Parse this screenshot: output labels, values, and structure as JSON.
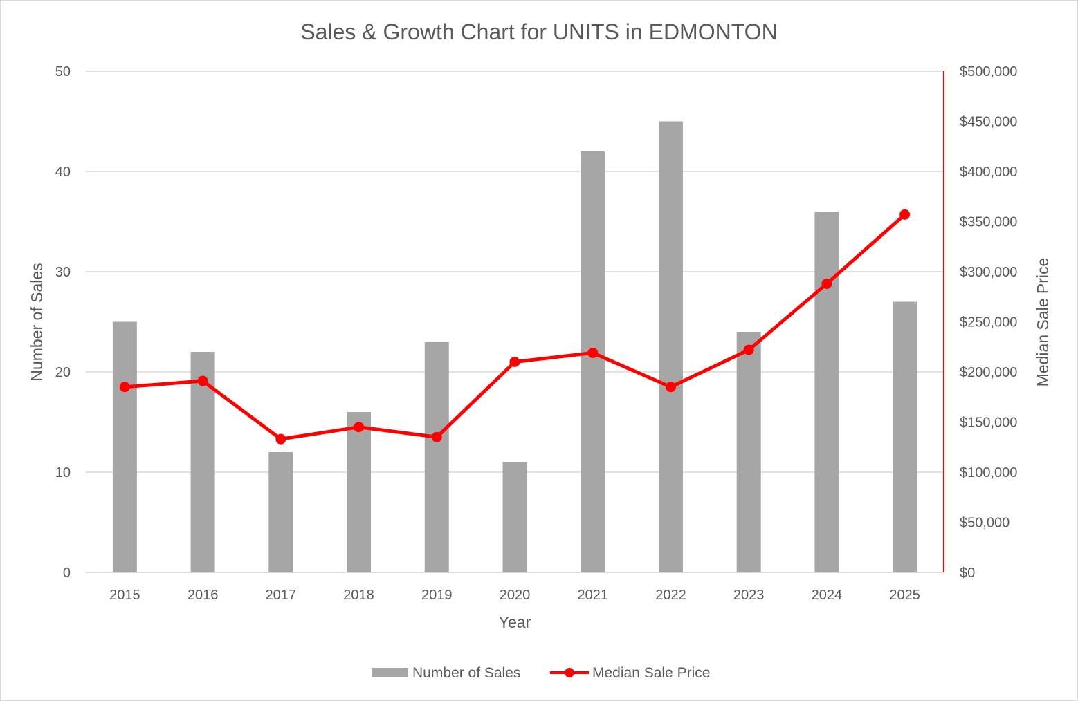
{
  "chart_data": {
    "type": "bar",
    "title": "Sales & Growth Chart for UNITS in EDMONTON",
    "xlabel": "Year",
    "ylabel": "Number of Sales",
    "y2label": "Median Sale Price",
    "categories": [
      "2015",
      "2016",
      "2017",
      "2018",
      "2019",
      "2020",
      "2021",
      "2022",
      "2023",
      "2024",
      "2025"
    ],
    "ylim": [
      0,
      50
    ],
    "y2lim": [
      0,
      500000
    ],
    "yticks": [
      "0",
      "10",
      "20",
      "30",
      "40",
      "50"
    ],
    "y2ticks": [
      "$0",
      "$50,000",
      "$100,000",
      "$150,000",
      "$200,000",
      "$250,000",
      "$300,000",
      "$350,000",
      "$400,000",
      "$450,000",
      "$500,000"
    ],
    "grid": true,
    "legend_position": "bottom",
    "series": [
      {
        "name": "Number of Sales",
        "type": "bar",
        "axis": "left",
        "color": "#a6a6a6",
        "values": [
          25,
          22,
          12,
          16,
          23,
          11,
          42,
          45,
          24,
          36,
          27
        ]
      },
      {
        "name": "Median Sale Price",
        "type": "line",
        "axis": "right",
        "color": "#ff0000",
        "values": [
          185000,
          191000,
          133000,
          145000,
          135000,
          210000,
          219000,
          185000,
          222000,
          288000,
          357000
        ]
      }
    ]
  }
}
